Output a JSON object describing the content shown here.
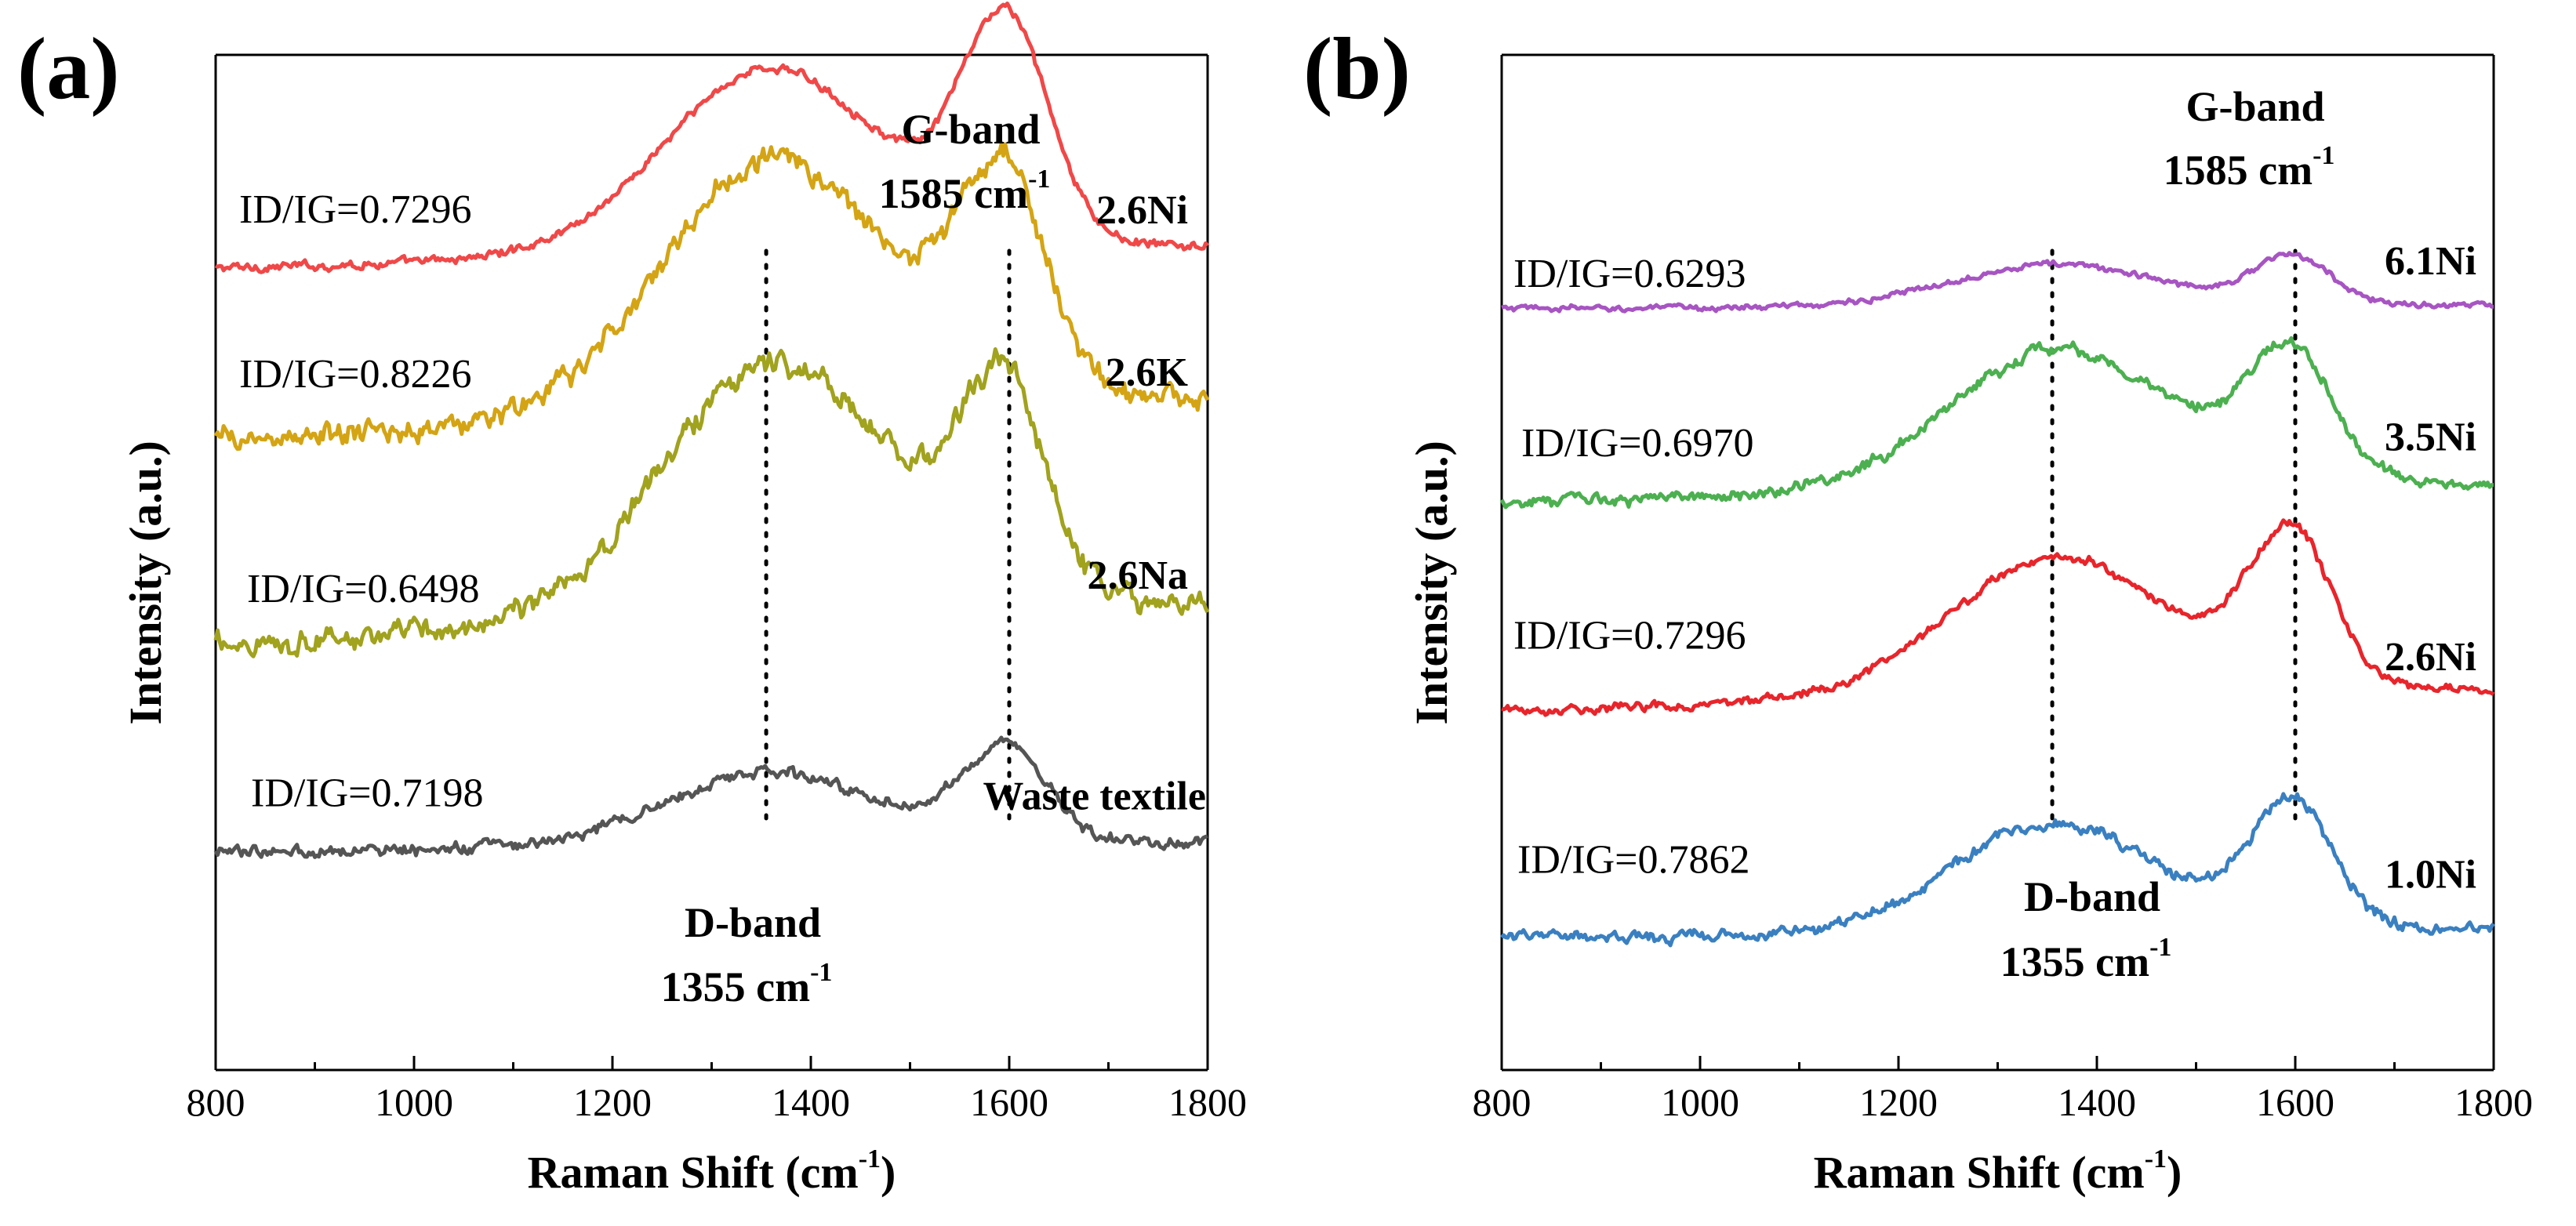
{
  "chart_data": [
    {
      "type": "line",
      "panel_label": "(a)",
      "xlabel": "Raman Shift (cm",
      "xlabel_sup": "-1",
      "xlabel_end": ")",
      "ylabel": "Intensity (a.u.)",
      "xlim": [
        800,
        1800
      ],
      "xticks": [
        "800",
        "1000",
        "1200",
        "1400",
        "1600",
        "1800"
      ],
      "dotted_lines": [
        1355,
        1600
      ],
      "d_band": {
        "title": "D-band",
        "value": "1355 cm",
        "sup": "-1"
      },
      "g_band": {
        "title": "G-band",
        "value": "1585 cm",
        "sup": "-1"
      },
      "series": [
        {
          "name": "2.6Ni",
          "ratio": "ID/IG=0.7296",
          "color": "#f04848",
          "baseline": 0.79,
          "d_amp": 0.135,
          "g_amp": 0.205,
          "g_width": 42,
          "slope": 0.055,
          "noise": 0.003
        },
        {
          "name": "2.6K",
          "ratio": "ID/IG=0.8226",
          "color": "#d4a414",
          "baseline": 0.62,
          "d_amp": 0.165,
          "g_amp": 0.19,
          "g_width": 40,
          "slope": 0.1,
          "noise": 0.008
        },
        {
          "name": "2.6Na",
          "ratio": "ID/IG=0.6498",
          "color": "#a1a21e",
          "baseline": 0.42,
          "d_amp": 0.165,
          "g_amp": 0.185,
          "g_width": 38,
          "slope": 0.1,
          "noise": 0.008
        },
        {
          "name": "Waste textile",
          "ratio": "ID/IG=0.7198",
          "color": "#555555",
          "baseline": 0.215,
          "d_amp": 0.055,
          "g_amp": 0.09,
          "g_width": 40,
          "slope": 0.02,
          "noise": 0.004
        }
      ]
    },
    {
      "type": "line",
      "panel_label": "(b)",
      "xlabel": "Raman Shift (cm",
      "xlabel_sup": "-1",
      "xlabel_end": ")",
      "ylabel": "Intensity (a.u.)",
      "xlim": [
        800,
        1800
      ],
      "xticks": [
        "800",
        "1000",
        "1200",
        "1400",
        "1600",
        "1800"
      ],
      "dotted_lines": [
        1355,
        1600
      ],
      "d_band": {
        "title": "D-band",
        "value": "1355 cm",
        "sup": "-1"
      },
      "g_band": {
        "title": "G-band",
        "value": "1585 cm",
        "sup": "-1"
      },
      "series": [
        {
          "name": "6.1Ni",
          "ratio": "ID/IG=0.6293",
          "color": "#a755c2",
          "baseline": 0.75,
          "d_amp": 0.035,
          "g_amp": 0.045,
          "g_width": 38,
          "slope": 0.008,
          "noise": 0.002
        },
        {
          "name": "3.5Ni",
          "ratio": "ID/IG=0.6970",
          "color": "#4cb050",
          "baseline": 0.56,
          "d_amp": 0.1,
          "g_amp": 0.115,
          "g_width": 40,
          "slope": 0.045,
          "noise": 0.004
        },
        {
          "name": "2.6Ni",
          "ratio": "ID/IG=0.7296",
          "color": "#e8252b",
          "baseline": 0.355,
          "d_amp": 0.1,
          "g_amp": 0.14,
          "g_width": 40,
          "slope": 0.045,
          "noise": 0.003
        },
        {
          "name": "1.0Ni",
          "ratio": "ID/IG=0.7862",
          "color": "#3a80c1",
          "baseline": 0.13,
          "d_amp": 0.09,
          "g_amp": 0.12,
          "g_width": 40,
          "slope": 0.02,
          "noise": 0.004
        }
      ]
    }
  ]
}
